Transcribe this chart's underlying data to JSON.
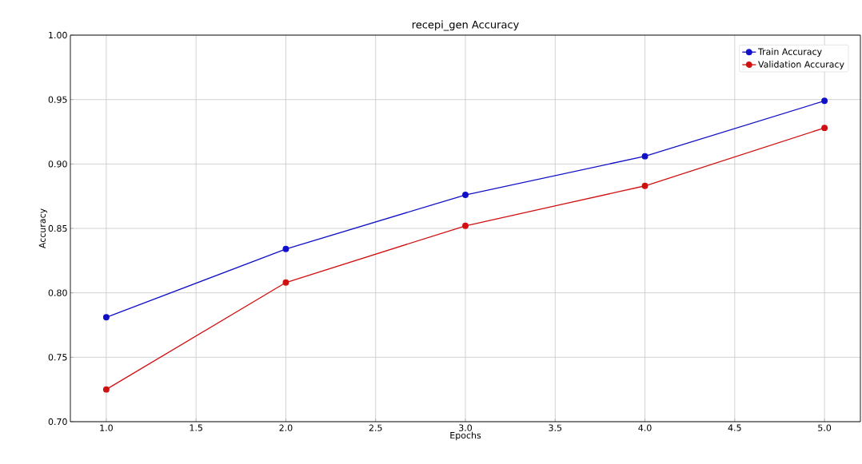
{
  "chart_data": {
    "type": "line",
    "title": "recepi_gen Accuracy",
    "xlabel": "Epochs",
    "ylabel": "Accuracy",
    "x": [
      1,
      2,
      3,
      4,
      5
    ],
    "series": [
      {
        "name": "Train Accuracy",
        "color": "#1010c8",
        "values": [
          0.781,
          0.834,
          0.876,
          0.906,
          0.949
        ]
      },
      {
        "name": "Validation Accuracy",
        "color": "#d01010",
        "values": [
          0.725,
          0.808,
          0.852,
          0.883,
          0.928
        ]
      }
    ],
    "xlim": [
      0.8,
      5.2
    ],
    "xticks": [
      {
        "value": 1,
        "label": "1.0"
      },
      {
        "value": 1.5,
        "label": "1.5"
      },
      {
        "value": 2,
        "label": "2.0"
      },
      {
        "value": 2.5,
        "label": "2.5"
      },
      {
        "value": 3,
        "label": "3.0"
      },
      {
        "value": 3.5,
        "label": "3.5"
      },
      {
        "value": 4,
        "label": "4.0"
      },
      {
        "value": 4.5,
        "label": "4.5"
      },
      {
        "value": 5,
        "label": "5.0"
      }
    ],
    "ylim": [
      0.7,
      1.0
    ],
    "yticks": [
      {
        "value": 0.7,
        "label": "0.70"
      },
      {
        "value": 0.75,
        "label": "0.75"
      },
      {
        "value": 0.8,
        "label": "0.80"
      },
      {
        "value": 0.85,
        "label": "0.85"
      },
      {
        "value": 0.9,
        "label": "0.90"
      },
      {
        "value": 0.95,
        "label": "0.95"
      },
      {
        "value": 1.0,
        "label": "1.00"
      }
    ],
    "grid": true,
    "legend": "top right",
    "marker": "circle",
    "line_style": "solid"
  }
}
